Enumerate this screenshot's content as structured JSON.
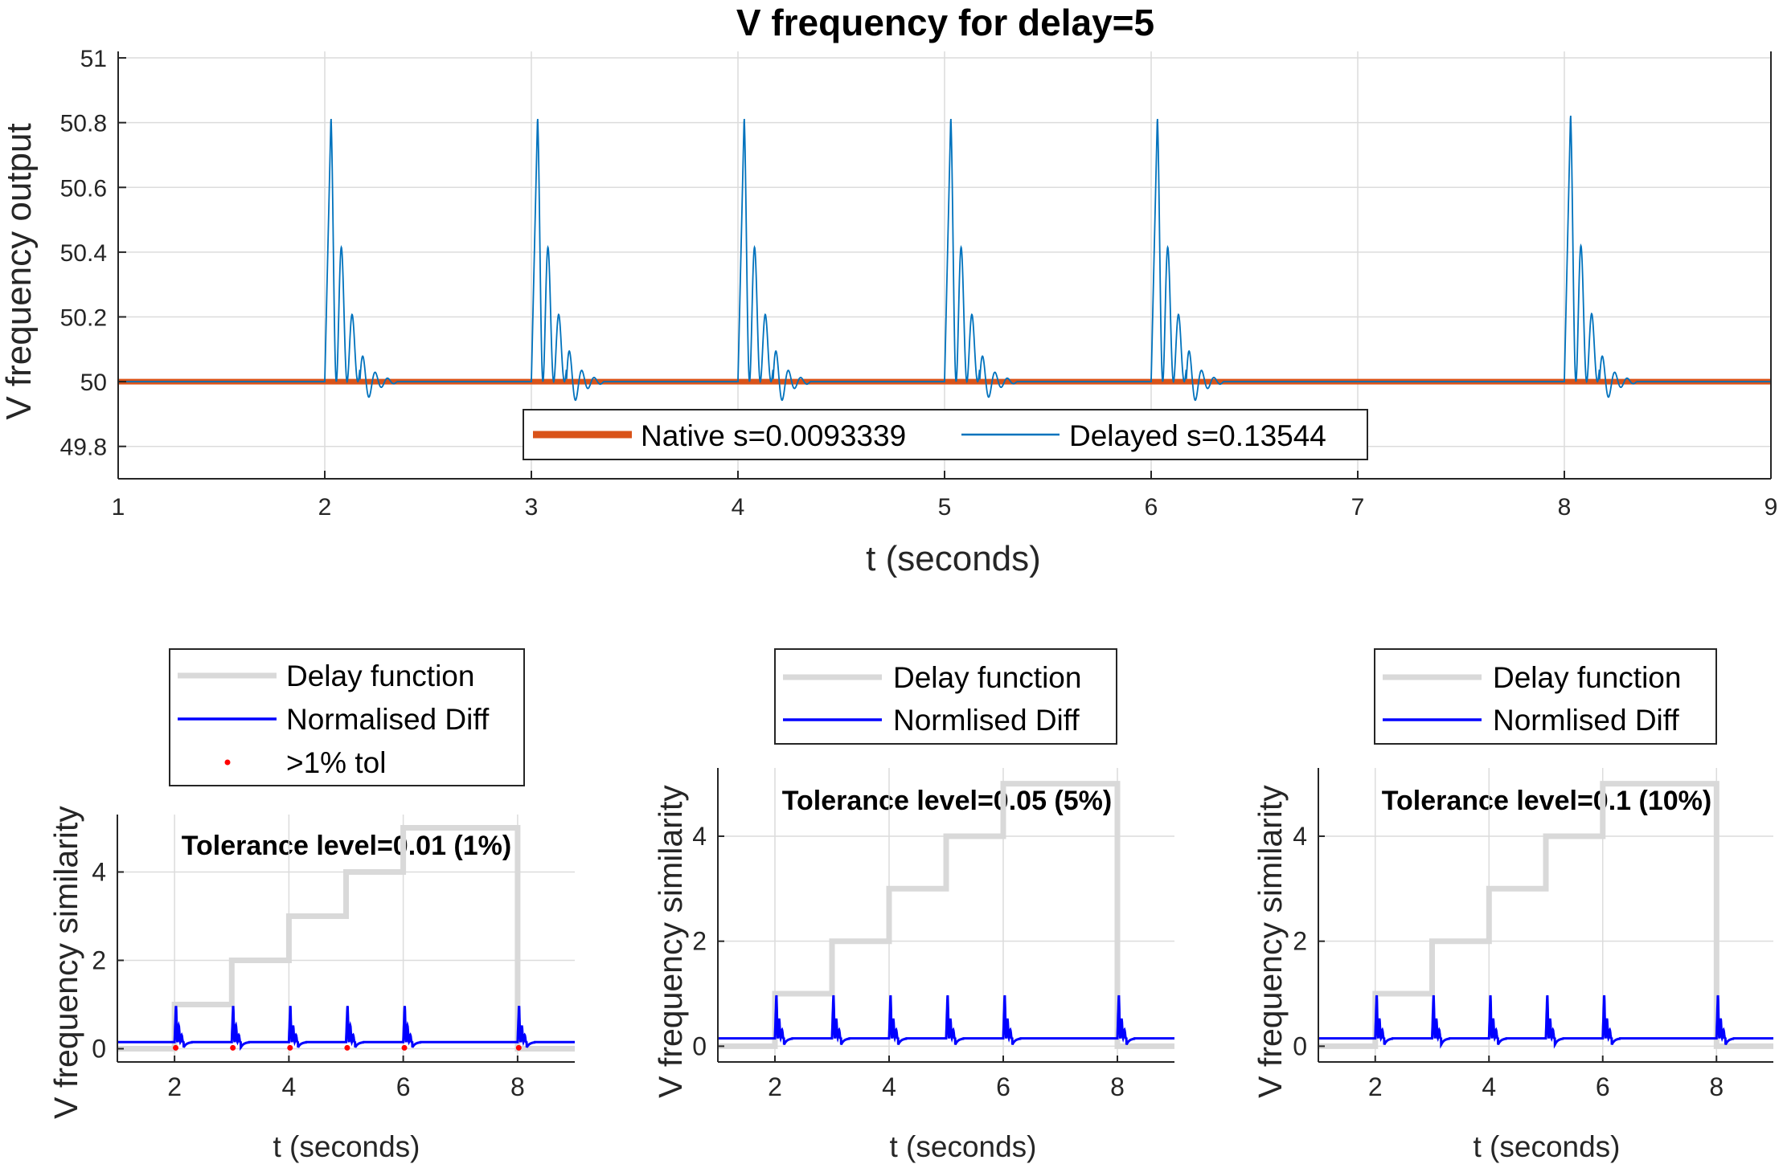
{
  "chart_data": [
    {
      "type": "line",
      "title": "V frequency for delay=5",
      "xlabel": "t (seconds)",
      "ylabel": "V frequency output",
      "xlim": [
        1,
        9
      ],
      "ylim": [
        49.7,
        51.02
      ],
      "xticks": [
        "1",
        "2",
        "3",
        "4",
        "5",
        "6",
        "7",
        "8",
        "9"
      ],
      "yticks": [
        "49.8",
        "50",
        "50.2",
        "50.4",
        "50.6",
        "50.8",
        "51"
      ],
      "grid": true,
      "legend_position": "bottom-center",
      "legend_orientation": "horizontal",
      "event_times": [
        2,
        3,
        4,
        5,
        6,
        8
      ],
      "peak_values": [
        50.82,
        50.82,
        50.82,
        50.82,
        50.82,
        50.83
      ],
      "trough_values": [
        49.9,
        49.88,
        49.88,
        49.9,
        49.88,
        49.9
      ],
      "series": [
        {
          "name": "Native s=0.0093339",
          "color": "#D95319",
          "baseline": 50.0
        },
        {
          "name": "Delayed s=0.13544",
          "color": "#0072BD",
          "baseline": 50.0
        }
      ]
    },
    {
      "type": "line",
      "title": "Tolerance level=0.01 (1%)",
      "xlabel": "t (seconds)",
      "ylabel": "V frequency similarity",
      "xlim": [
        1,
        9
      ],
      "ylim": [
        -0.3,
        5.3
      ],
      "xticks": [
        "2",
        "4",
        "6",
        "8"
      ],
      "yticks": [
        "0",
        "2",
        "4"
      ],
      "grid": true,
      "legend_position": "outside-top",
      "series": [
        {
          "name": "Delay function",
          "color": "#D9D9D9",
          "steps": [
            [
              1,
              0
            ],
            [
              2,
              1
            ],
            [
              3,
              2
            ],
            [
              4,
              3
            ],
            [
              5,
              4
            ],
            [
              6,
              5
            ],
            [
              8,
              0
            ],
            [
              9,
              0
            ]
          ]
        },
        {
          "name": "Normalised Diff",
          "color": "#0000FF",
          "baseline": 0.15,
          "peak": 1.0,
          "spike_times": [
            2,
            3,
            4,
            5,
            6,
            8
          ]
        },
        {
          "name": ">1% tol",
          "color": "#FF0000",
          "marker": "dot",
          "points_x": [
            2.02,
            3.02,
            4.02,
            5.02,
            6.02,
            8.02
          ],
          "points_y": [
            0.02,
            0.02,
            0.02,
            0.02,
            0.02,
            0.02
          ]
        }
      ]
    },
    {
      "type": "line",
      "title": "Tolerance level=0.05 (5%)",
      "xlabel": "t (seconds)",
      "ylabel": "V frequency similarity",
      "xlim": [
        1,
        9
      ],
      "ylim": [
        -0.3,
        5.3
      ],
      "xticks": [
        "2",
        "4",
        "6",
        "8"
      ],
      "yticks": [
        "0",
        "2",
        "4"
      ],
      "grid": true,
      "legend_position": "outside-top",
      "series": [
        {
          "name": "Delay function",
          "color": "#D9D9D9",
          "steps": [
            [
              1,
              0
            ],
            [
              2,
              1
            ],
            [
              3,
              2
            ],
            [
              4,
              3
            ],
            [
              5,
              4
            ],
            [
              6,
              5
            ],
            [
              8,
              0
            ],
            [
              9,
              0
            ]
          ]
        },
        {
          "name": "Normlised Diff",
          "color": "#0000FF",
          "baseline": 0.15,
          "peak": 1.0,
          "spike_times": [
            2,
            3,
            4,
            5,
            6,
            8
          ]
        }
      ]
    },
    {
      "type": "line",
      "title": "Tolerance level=0.1 (10%)",
      "xlabel": "t (seconds)",
      "ylabel": "V frequency similarity",
      "xlim": [
        1,
        9
      ],
      "ylim": [
        -0.3,
        5.3
      ],
      "xticks": [
        "2",
        "4",
        "6",
        "8"
      ],
      "yticks": [
        "0",
        "2",
        "4"
      ],
      "grid": true,
      "legend_position": "outside-top",
      "series": [
        {
          "name": "Delay function",
          "color": "#D9D9D9",
          "steps": [
            [
              1,
              0
            ],
            [
              2,
              1
            ],
            [
              3,
              2
            ],
            [
              4,
              3
            ],
            [
              5,
              4
            ],
            [
              6,
              5
            ],
            [
              8,
              0
            ],
            [
              9,
              0
            ]
          ]
        },
        {
          "name": "Normlised Diff",
          "color": "#0000FF",
          "baseline": 0.15,
          "peak": 1.0,
          "spike_times": [
            2,
            3,
            4,
            5,
            6,
            8
          ]
        }
      ]
    }
  ]
}
